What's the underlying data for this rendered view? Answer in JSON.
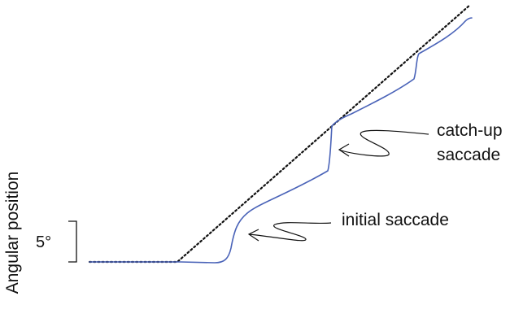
{
  "figure": {
    "ylabel": "Angular position",
    "scale_bar_label": "5°",
    "annotations": {
      "initial": "initial saccade",
      "catchup_line1": "catch-up",
      "catchup_line2": "saccade"
    }
  },
  "colors": {
    "eye_trace": "#4a63b8",
    "target": "#111111",
    "text": "#111111"
  }
}
